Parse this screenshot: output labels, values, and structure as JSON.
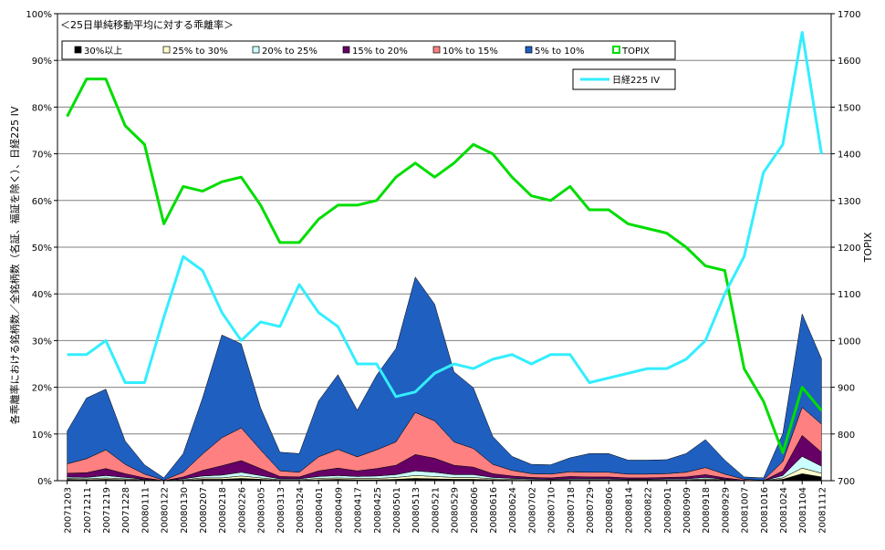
{
  "chart_data": {
    "type": "area",
    "title": "＜25日単純移動平均に対する乖離率＞",
    "ylabel_left": "各乖離率における銘柄数／全銘柄数（名証、福証を除く）、日経225 IV",
    "ylabel_right": "TOPIX",
    "ylim_left": [
      0,
      100
    ],
    "ylim_right": [
      700,
      1700
    ],
    "y_ticks_left": [
      "0%",
      "10%",
      "20%",
      "30%",
      "40%",
      "50%",
      "60%",
      "70%",
      "80%",
      "90%",
      "100%"
    ],
    "y_ticks_right": [
      "700",
      "800",
      "900",
      "1000",
      "1100",
      "1200",
      "1300",
      "1400",
      "1500",
      "1600",
      "1700"
    ],
    "grid": true,
    "legend_position": "top",
    "x_tick_labels": [
      "20071203",
      "20071211",
      "20071219",
      "20071228",
      "20080111",
      "20080122",
      "20080130",
      "20080207",
      "20080218",
      "20080226",
      "20080305",
      "20080313",
      "20080324",
      "20080401",
      "20080409",
      "20080417",
      "20080425",
      "20080501",
      "20080513",
      "20080521",
      "20080529",
      "20080606",
      "20080616",
      "20080624",
      "20080702",
      "20080710",
      "20080718",
      "20080729",
      "20080806",
      "20080814",
      "20080822",
      "20080901",
      "20080909",
      "20080918",
      "20080929",
      "20081007",
      "20081016",
      "20081024",
      "20081104",
      "20081112"
    ],
    "x": [
      "20071203",
      "20071211",
      "20071219",
      "20071228",
      "20080111",
      "20080122",
      "20080130",
      "20080207",
      "20080218",
      "20080226",
      "20080305",
      "20080313",
      "20080324",
      "20080401",
      "20080409",
      "20080417",
      "20080425",
      "20080501",
      "20080513",
      "20080521",
      "20080529",
      "20080606",
      "20080616",
      "20080624",
      "20080702",
      "20080710",
      "20080718",
      "20080729",
      "20080806",
      "20080814",
      "20080822",
      "20080901",
      "20080909",
      "20080918",
      "20080929",
      "20081007",
      "20081016",
      "20081024",
      "20081104",
      "20081112"
    ],
    "stacked_series": [
      {
        "name": "30%以上",
        "color": "#000000",
        "values": [
          0.3,
          0.2,
          0.3,
          0.2,
          0.1,
          0,
          0.1,
          0.3,
          0.3,
          0.5,
          0.3,
          0.1,
          0.1,
          0.2,
          0.3,
          0.2,
          0.2,
          0.3,
          0.5,
          0.4,
          0.3,
          0.3,
          0.2,
          0.1,
          0.1,
          0.1,
          0.1,
          0.1,
          0.1,
          0.1,
          0.1,
          0.1,
          0.1,
          0.2,
          0.1,
          0,
          0,
          0.3,
          1.5,
          0.8
        ]
      },
      {
        "name": "25% to 30%",
        "color": "#ffffcc",
        "values": [
          0.2,
          0.2,
          0.3,
          0.2,
          0.1,
          0,
          0.1,
          0.3,
          0.3,
          0.5,
          0.3,
          0.1,
          0.1,
          0.3,
          0.3,
          0.3,
          0.3,
          0.4,
          0.6,
          0.5,
          0.4,
          0.4,
          0.2,
          0.2,
          0.1,
          0.1,
          0.1,
          0.1,
          0.1,
          0.1,
          0.1,
          0.1,
          0.1,
          0.2,
          0.1,
          0,
          0,
          0.3,
          1.2,
          0.8
        ]
      },
      {
        "name": "20% to 25%",
        "color": "#ccffff",
        "values": [
          0.3,
          0.3,
          0.5,
          0.3,
          0.1,
          0,
          0.2,
          0.4,
          0.6,
          0.8,
          0.5,
          0.2,
          0.2,
          0.4,
          0.5,
          0.4,
          0.5,
          0.6,
          1.0,
          0.9,
          0.6,
          0.6,
          0.3,
          0.2,
          0.2,
          0.1,
          0.2,
          0.2,
          0.2,
          0.1,
          0.1,
          0.2,
          0.2,
          0.3,
          0.1,
          0,
          0,
          0.5,
          2.5,
          1.5
        ]
      },
      {
        "name": "15% to 20%",
        "color": "#660066",
        "values": [
          0.8,
          1.0,
          1.5,
          0.8,
          0.3,
          0,
          0.4,
          1.2,
          2.0,
          2.5,
          1.5,
          0.5,
          0.4,
          1.2,
          1.6,
          1.2,
          1.6,
          2.0,
          3.5,
          3.0,
          2.0,
          1.6,
          0.8,
          0.5,
          0.3,
          0.3,
          0.5,
          0.4,
          0.4,
          0.3,
          0.3,
          0.3,
          0.4,
          0.6,
          0.3,
          0.1,
          0,
          1.0,
          4.5,
          3.0
        ]
      },
      {
        "name": "10% to 15%",
        "color": "#ff8080",
        "values": [
          2.0,
          3.0,
          4.0,
          2.0,
          0.8,
          0.1,
          1.0,
          3.5,
          6.0,
          7.0,
          4.0,
          1.2,
          1.0,
          3.0,
          4.0,
          3.0,
          4.0,
          5.0,
          9.0,
          8.0,
          5.0,
          4.0,
          2.0,
          1.2,
          0.8,
          0.8,
          1.0,
          1.0,
          1.0,
          0.8,
          0.8,
          0.8,
          1.0,
          1.5,
          0.8,
          0.2,
          0.1,
          2.0,
          6.0,
          6.0
        ]
      },
      {
        "name": "5% to 10%",
        "color": "#1f5fbf",
        "values": [
          7,
          13,
          13,
          5,
          2,
          0.5,
          4,
          12,
          22,
          18,
          9,
          4,
          4,
          12,
          16,
          10,
          16,
          20,
          29,
          25,
          15,
          13,
          6,
          3,
          2,
          2,
          3,
          4,
          4,
          3,
          3,
          3,
          4,
          6,
          3,
          0.5,
          0.5,
          6,
          20,
          14
        ]
      }
    ],
    "lines": [
      {
        "name": "TOPIX",
        "axis": "right",
        "color": "#00dd00",
        "values": [
          1480,
          1560,
          1560,
          1460,
          1420,
          1250,
          1330,
          1320,
          1340,
          1350,
          1290,
          1210,
          1210,
          1260,
          1290,
          1290,
          1300,
          1350,
          1380,
          1350,
          1380,
          1420,
          1400,
          1350,
          1310,
          1300,
          1330,
          1280,
          1280,
          1250,
          1240,
          1230,
          1200,
          1160,
          1150,
          940,
          870,
          760,
          900,
          850
        ]
      },
      {
        "name": "日経225 IV",
        "axis": "left",
        "color": "#33eeff",
        "values": [
          27,
          27,
          30,
          21,
          21,
          35,
          48,
          45,
          36,
          30,
          34,
          33,
          42,
          36,
          33,
          25,
          25,
          18,
          19,
          23,
          25,
          24,
          26,
          27,
          25,
          27,
          27,
          21,
          22,
          23,
          24,
          24,
          26,
          30,
          40,
          48,
          66,
          72,
          96,
          70
        ]
      }
    ],
    "legend_entries": [
      "30%以上",
      "25% to 30%",
      "20% to 25%",
      "15% to 20%",
      "10% to 15%",
      "5% to 10%",
      "TOPIX",
      "日経225 IV"
    ]
  }
}
